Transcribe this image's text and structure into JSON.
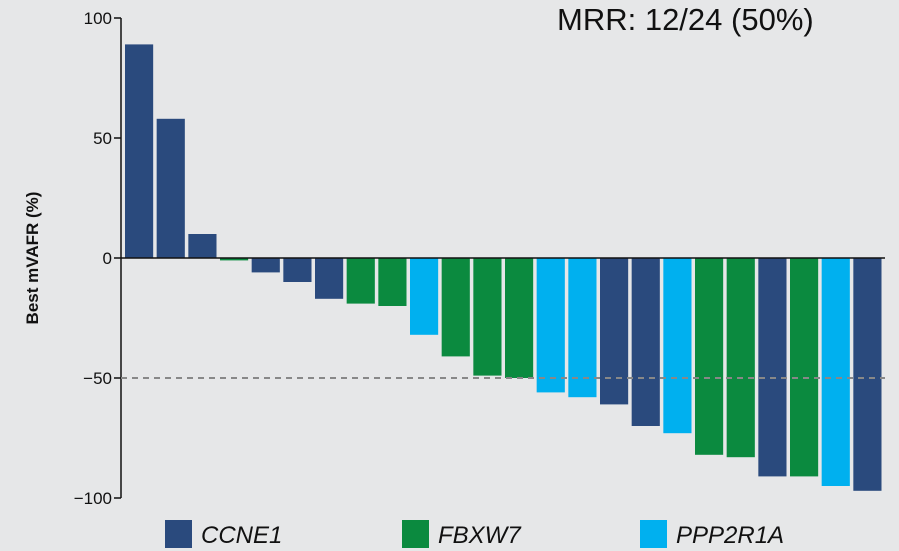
{
  "chart_data": {
    "type": "bar",
    "title": "MRR: 12/24 (50%)",
    "y_label": "Best mVAFR (%)",
    "categories": [
      null,
      null,
      null,
      null,
      null,
      null,
      null,
      null,
      null,
      null,
      null,
      null,
      null,
      null,
      null,
      null,
      null,
      null,
      null,
      null,
      null,
      null,
      null,
      null
    ],
    "series": [
      {
        "name": "CCNE1",
        "color": "#2a4a7d",
        "values": [
          89,
          58,
          10,
          null,
          -6,
          -10,
          -17,
          null,
          null,
          null,
          null,
          null,
          null,
          null,
          null,
          -61,
          -70,
          null,
          null,
          null,
          -91,
          null,
          null,
          -97
        ]
      },
      {
        "name": "FBXW7",
        "color": "#0b8a3f",
        "values": [
          null,
          null,
          null,
          -1,
          null,
          null,
          null,
          -19,
          -20,
          null,
          -41,
          -49,
          -50,
          null,
          null,
          null,
          null,
          null,
          -82,
          -83,
          null,
          -91,
          null,
          null
        ]
      },
      {
        "name": "PPP2R1A",
        "color": "#00b0ef",
        "values": [
          null,
          null,
          null,
          null,
          null,
          null,
          null,
          null,
          null,
          -32,
          null,
          null,
          null,
          -56,
          -58,
          null,
          null,
          -73,
          null,
          null,
          null,
          null,
          -95,
          null
        ]
      }
    ],
    "reference_line": -50,
    "ylim": [
      -100,
      100
    ],
    "yticks": [
      {
        "value": -100,
        "label": "−100"
      },
      {
        "value": -50,
        "label": "−50"
      },
      0,
      50,
      100
    ]
  }
}
